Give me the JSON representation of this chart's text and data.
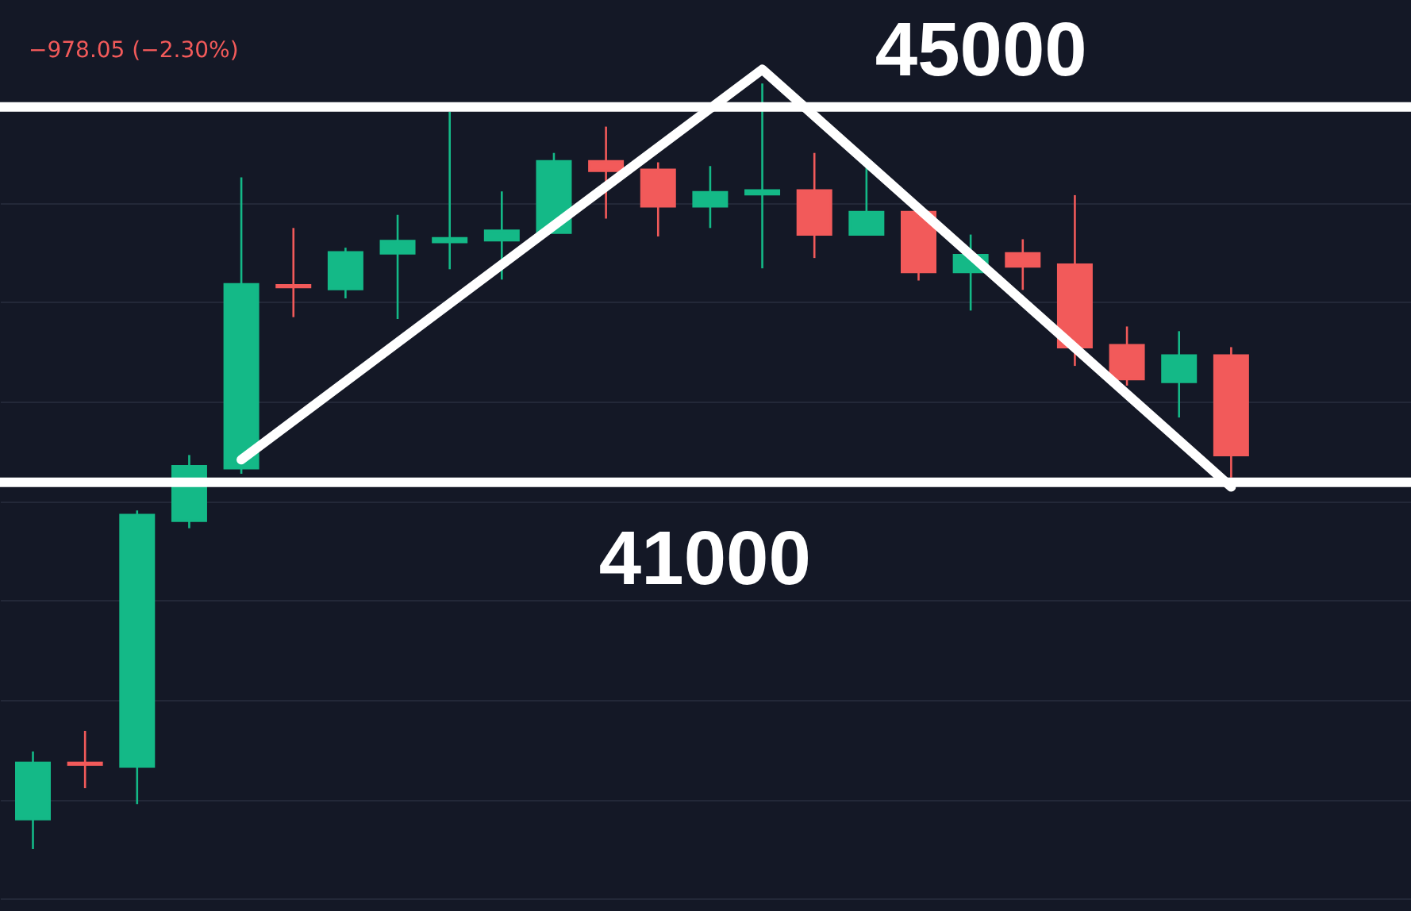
{
  "chart_data": {
    "type": "candlestick",
    "categories": [
      null,
      null,
      null,
      null,
      null,
      null,
      null,
      null,
      null,
      null,
      null,
      null,
      null,
      null,
      null,
      null,
      null,
      null,
      null,
      null,
      null,
      null,
      null,
      null
    ],
    "ohlc": [
      [
        37410,
        38130,
        37090,
        38010
      ],
      [
        38010,
        38350,
        37740,
        37990
      ],
      [
        37970,
        40700,
        37570,
        40650
      ],
      [
        40590,
        41290,
        40510,
        41170
      ],
      [
        41150,
        44250,
        41090,
        43110
      ],
      [
        43100,
        43710,
        42760,
        43080
      ],
      [
        43060,
        43500,
        42960,
        43450
      ],
      [
        43440,
        43850,
        42740,
        43570
      ],
      [
        43560,
        44950,
        43270,
        43600
      ],
      [
        43580,
        44100,
        43160,
        43680
      ],
      [
        43660,
        44510,
        43660,
        44420
      ],
      [
        44420,
        44790,
        43810,
        44320
      ],
      [
        44330,
        44410,
        43620,
        43940
      ],
      [
        43940,
        44370,
        43710,
        44090
      ],
      [
        44070,
        45250,
        43280,
        44110
      ],
      [
        44110,
        44510,
        43390,
        43640
      ],
      [
        43640,
        44370,
        43640,
        43880
      ],
      [
        43880,
        43880,
        43150,
        43240
      ],
      [
        43240,
        43640,
        42830,
        43420
      ],
      [
        43440,
        43590,
        43050,
        43300
      ],
      [
        43320,
        44060,
        42240,
        42440
      ],
      [
        42460,
        42660,
        42030,
        42100
      ],
      [
        42070,
        42610,
        41690,
        42350
      ],
      [
        42350,
        42440,
        41050,
        41290
      ]
    ],
    "colors": [
      "#14b987",
      "#f25a5a",
      "#14b987",
      "#14b987",
      "#14b987",
      "#f25a5a",
      "#14b987",
      "#14b987",
      "#14b987",
      "#14b987",
      "#14b987",
      "#f25a5a",
      "#f25a5a",
      "#14b987",
      "#14b987",
      "#f25a5a",
      "#14b987",
      "#f25a5a",
      "#14b987",
      "#f25a5a",
      "#f25a5a",
      "#f25a5a",
      "#14b987",
      "#f25a5a"
    ],
    "series": [
      {
        "type": "line",
        "color": "#ffffff",
        "values": [
          null,
          null,
          null,
          null,
          41240,
          null,
          null,
          null,
          null,
          null,
          null,
          null,
          null,
          null,
          45400,
          null,
          null,
          null,
          null,
          null,
          null,
          null,
          null,
          40950
        ]
      }
    ],
    "ylim": [
      36430,
      46140
    ],
    "yticks": [
      {
        "value": 36570,
        "label": null
      },
      {
        "value": 37620,
        "label": null
      },
      {
        "value": 38680,
        "label": null
      },
      {
        "value": 39750,
        "label": null
      },
      {
        "value": 40800,
        "label": null
      },
      {
        "value": 41860,
        "label": null
      },
      {
        "value": 42920,
        "label": null
      },
      {
        "value": 43970,
        "label": null
      }
    ],
    "grid": true,
    "tick_labels": false,
    "ref_lines": [
      {
        "axis": "y",
        "value": 45000,
        "label": "45000",
        "color": "#ffffff"
      },
      {
        "axis": "y",
        "value": 41000,
        "label": "41000",
        "color": "#ffffff"
      }
    ],
    "annotations": [
      "−978.05 (−2.30%)"
    ]
  }
}
